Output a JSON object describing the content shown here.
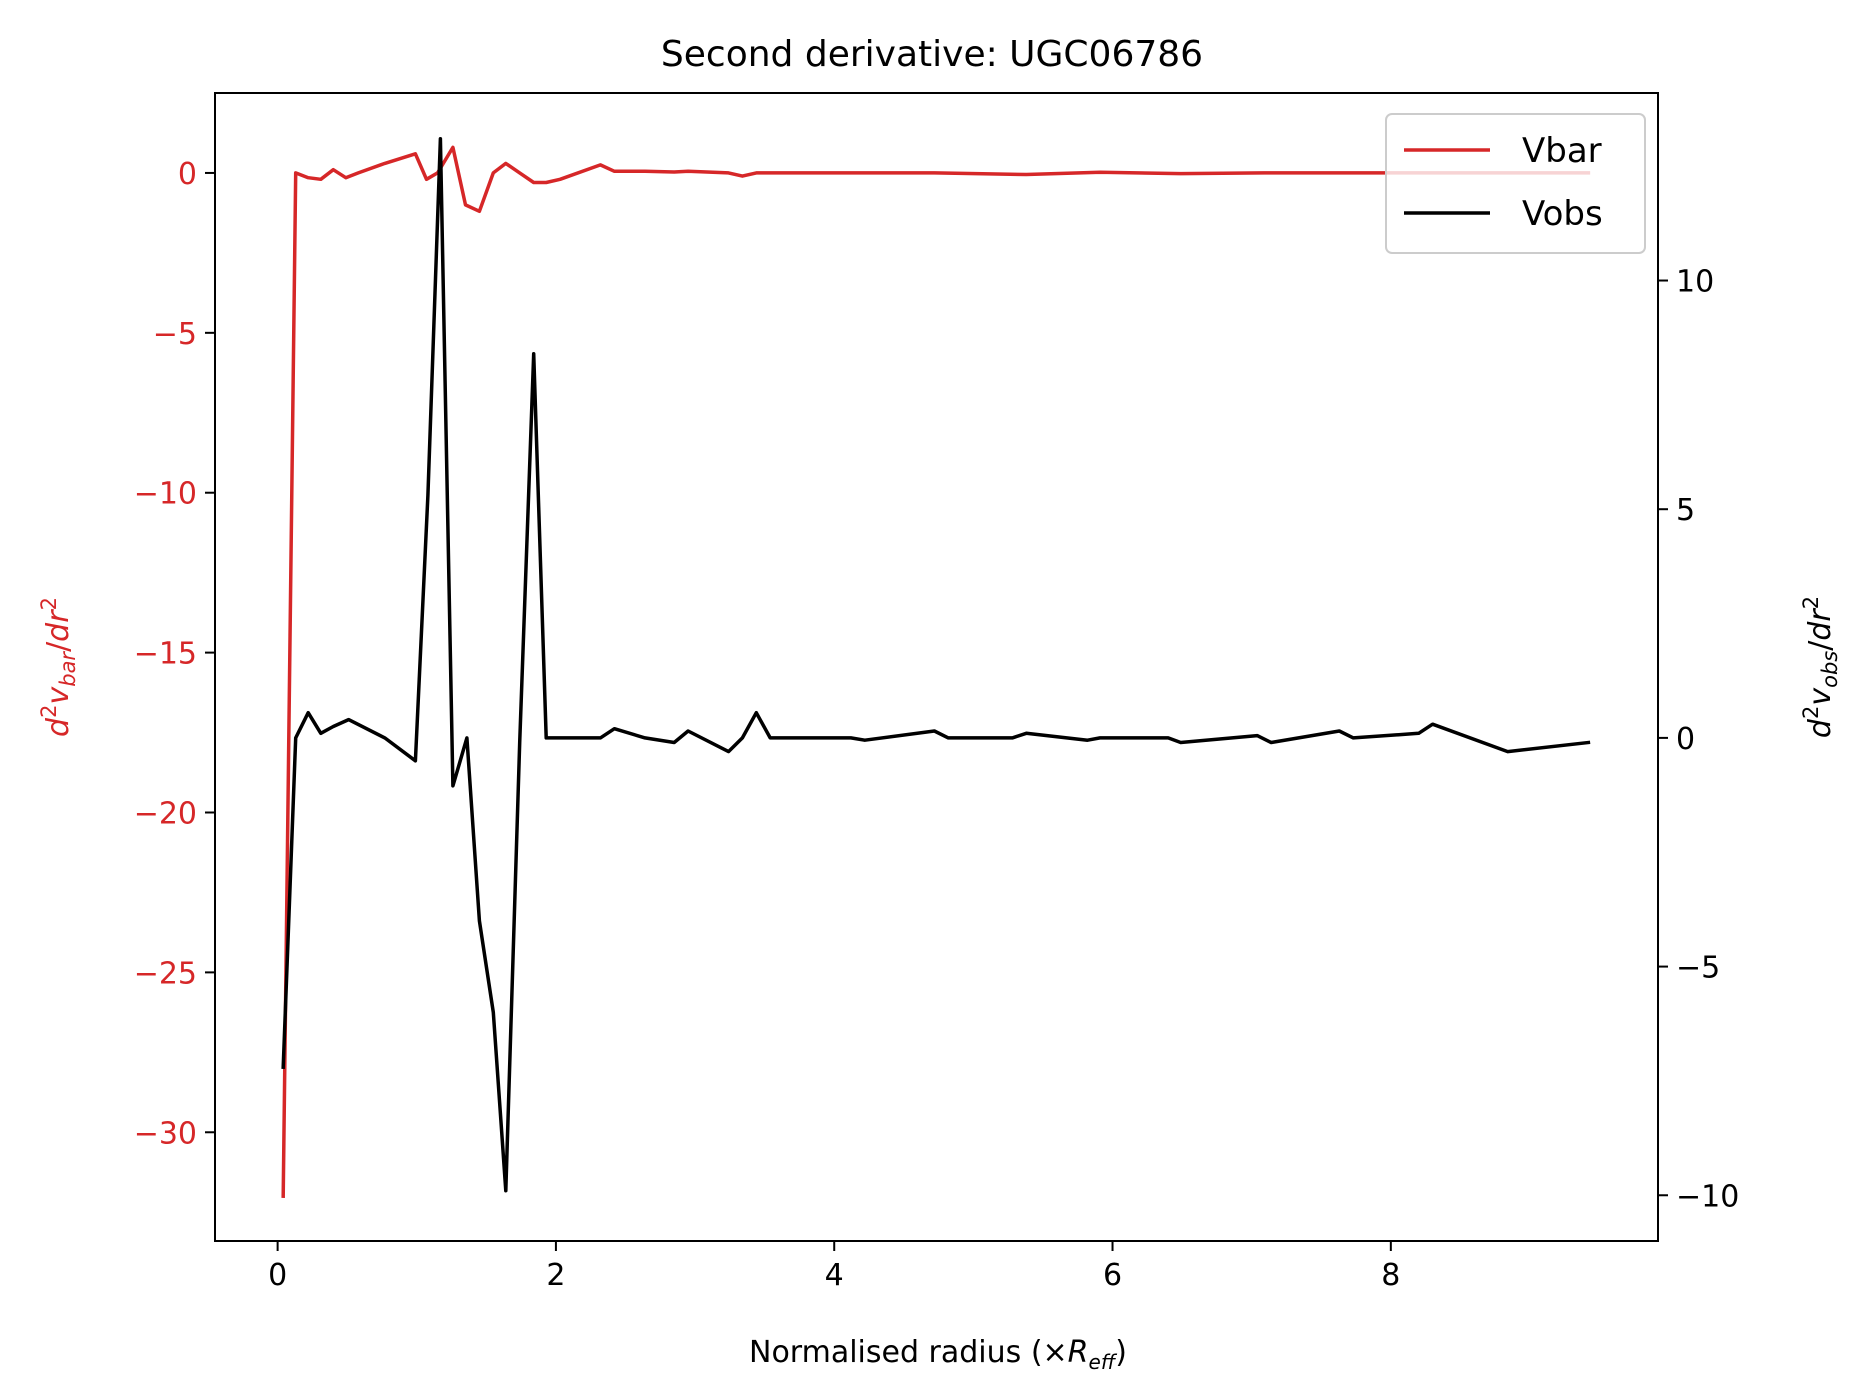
{
  "chart_data": {
    "type": "line",
    "title": "Second derivative: UGC06786",
    "xlabel": "Normalised radius (×",
    "xlabel_sub_main": "R",
    "xlabel_sub": "eff",
    "xlabel_close": ")",
    "ylabel_left": "d²v_bar/dr²",
    "ylabel_right": "d²v_obs/dr²",
    "xlim": [
      -0.45,
      9.92
    ],
    "ylim_left": [
      -33.4,
      2.5
    ],
    "ylim_right": [
      -11.0,
      14.1
    ],
    "x_ticks": [
      0,
      2,
      4,
      6,
      8
    ],
    "x_tick_labels": [
      "0",
      "2",
      "4",
      "6",
      "8"
    ],
    "y_left_ticks": [
      0,
      -5,
      -10,
      -15,
      -20,
      -25,
      -30
    ],
    "y_left_tick_labels": [
      "0",
      "−5",
      "−10",
      "−15",
      "−20",
      "−25",
      "−30"
    ],
    "y_right_ticks": [
      10,
      5,
      0,
      -5,
      -10
    ],
    "y_right_tick_labels": [
      "10",
      "5",
      "0",
      "−5",
      "−10"
    ],
    "left_axis_color": "#d62728",
    "right_axis_color": "#000000",
    "legend_position": "upper right",
    "series": [
      {
        "name": "Vbar",
        "axis": "left",
        "color": "#d62728",
        "x": [
          0.04,
          0.13,
          0.22,
          0.31,
          0.4,
          0.49,
          0.58,
          0.77,
          0.99,
          1.07,
          1.15,
          1.26,
          1.35,
          1.45,
          1.55,
          1.64,
          1.74,
          1.84,
          1.93,
          2.03,
          2.32,
          2.42,
          2.64,
          2.85,
          2.95,
          3.24,
          3.34,
          3.44,
          3.54,
          4.12,
          4.72,
          5.38,
          5.91,
          6.49,
          7.09,
          7.64,
          8.2,
          9.42
        ],
        "y": [
          -32.0,
          0.0,
          -0.15,
          -0.2,
          0.1,
          -0.15,
          0.0,
          0.3,
          0.6,
          -0.2,
          0.0,
          0.8,
          -1.0,
          -1.2,
          0.0,
          0.3,
          0.0,
          -0.3,
          -0.3,
          -0.2,
          0.25,
          0.05,
          0.05,
          0.03,
          0.05,
          0.0,
          -0.1,
          0.0,
          0.0,
          0.0,
          0.0,
          -0.05,
          0.02,
          -0.02,
          0.0,
          0.0,
          0.0,
          0.0
        ]
      },
      {
        "name": "Vobs",
        "axis": "right",
        "color": "#000000",
        "x": [
          0.04,
          0.13,
          0.22,
          0.31,
          0.4,
          0.51,
          0.77,
          0.99,
          1.08,
          1.17,
          1.26,
          1.36,
          1.45,
          1.55,
          1.64,
          1.74,
          1.84,
          1.93,
          2.03,
          2.32,
          2.42,
          2.64,
          2.85,
          2.95,
          3.24,
          3.34,
          3.44,
          3.54,
          4.12,
          4.22,
          4.72,
          4.82,
          5.28,
          5.38,
          5.82,
          5.91,
          6.4,
          6.49,
          7.04,
          7.14,
          7.63,
          7.73,
          8.2,
          8.3,
          8.84,
          9.42
        ],
        "y": [
          -7.2,
          0.0,
          0.55,
          0.1,
          0.25,
          0.4,
          0.0,
          -0.5,
          5.3,
          13.1,
          -1.05,
          0.0,
          -4.0,
          -6.0,
          -9.9,
          -0.1,
          8.4,
          0.0,
          0.0,
          0.0,
          0.2,
          0.0,
          -0.1,
          0.15,
          -0.3,
          0.0,
          0.55,
          0.0,
          0.0,
          -0.05,
          0.15,
          0.0,
          0.0,
          0.1,
          -0.05,
          0.0,
          0.0,
          -0.1,
          0.05,
          -0.1,
          0.15,
          0.0,
          0.1,
          0.3,
          -0.3,
          -0.1
        ]
      }
    ]
  }
}
